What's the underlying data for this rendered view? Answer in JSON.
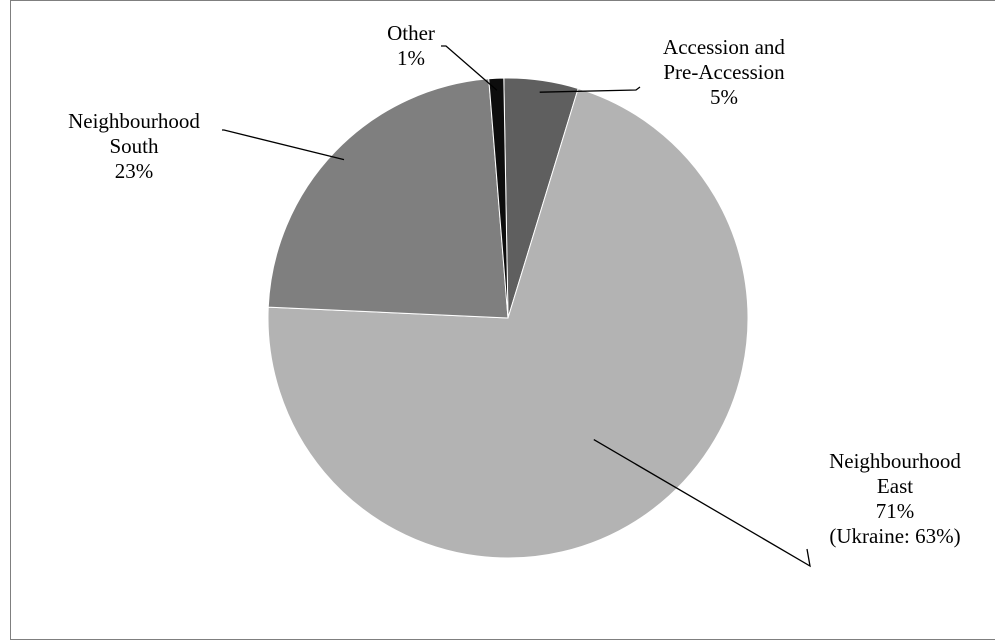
{
  "chart_data": {
    "type": "pie",
    "title": "",
    "unit": "%",
    "slices": [
      {
        "name": "Accession and Pre-Accession",
        "value": 5,
        "color": "#5f5f5f",
        "label_lines": [
          "Accession and",
          "Pre-Accession",
          "5%"
        ]
      },
      {
        "name": "Neighbourhood East",
        "value": 71,
        "color": "#b3b3b3",
        "label_lines": [
          "Neighbourhood",
          "East",
          "71%",
          "(Ukraine:  63%)"
        ]
      },
      {
        "name": "Neighbourhood South",
        "value": 23,
        "color": "#7f7f7f",
        "label_lines": [
          "Neighbourhood",
          "South",
          "23%"
        ]
      },
      {
        "name": "Other",
        "value": 1,
        "color": "#0d0d0d",
        "label_lines": [
          "Other",
          "1%"
        ]
      }
    ],
    "start": "top",
    "direction": "clockwise",
    "legend": "none",
    "leader_lines": true
  }
}
